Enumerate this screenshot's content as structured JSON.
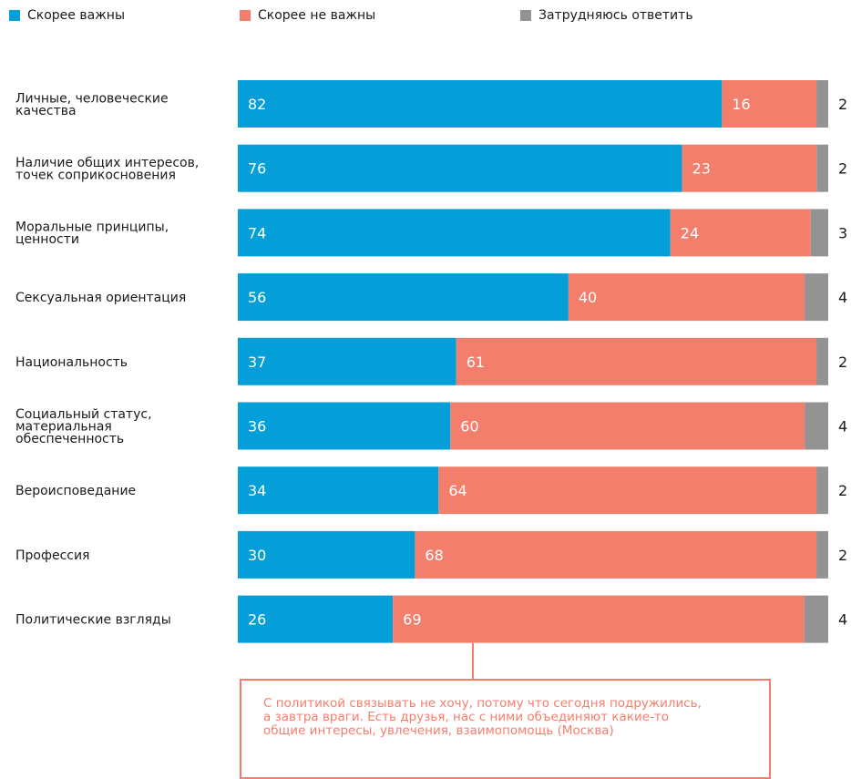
{
  "colors": {
    "important": "#049fd9",
    "not_important": "#f47e6c",
    "hard_to_say": "#939393"
  },
  "legend": [
    {
      "label": "Скорее важны",
      "color": "#049fd9"
    },
    {
      "label": "Скорее не важны",
      "color": "#f47e6c"
    },
    {
      "label": "Затрудняюсь ответить",
      "color": "#939393"
    }
  ],
  "chart_data": {
    "type": "bar",
    "orientation": "horizontal",
    "stacked": true,
    "categories": [
      [
        "Личные, человеческие",
        "качества"
      ],
      [
        "Наличие общих интересов,",
        "точек соприкосновения"
      ],
      [
        "Моральные принципы,",
        "ценности"
      ],
      [
        "Сексуальная ориентация"
      ],
      [
        "Национальность"
      ],
      [
        "Социальный статус,",
        "материальная",
        "обеспеченность"
      ],
      [
        "Вероисповедание"
      ],
      [
        "Профессия"
      ],
      [
        "Политические взгляды"
      ]
    ],
    "series": [
      {
        "name": "Скорее важны",
        "values": [
          82,
          76,
          74,
          56,
          37,
          36,
          34,
          30,
          26
        ]
      },
      {
        "name": "Скорее не важны",
        "values": [
          16,
          23,
          24,
          40,
          61,
          60,
          64,
          68,
          69
        ]
      },
      {
        "name": "Затрудняюсь ответить",
        "values": [
          2,
          2,
          3,
          4,
          2,
          4,
          2,
          2,
          4
        ]
      }
    ],
    "xlim": [
      0,
      100
    ],
    "legend_position": "top"
  },
  "callout": {
    "lines": [
      "С политикой связывать не хочу, потому что сегодня подружились,",
      "а завтра враги. Есть друзья, нас с ними объединяют какие-то",
      "общие интересы, увлечения, взаимопомощь (Москва)"
    ]
  }
}
